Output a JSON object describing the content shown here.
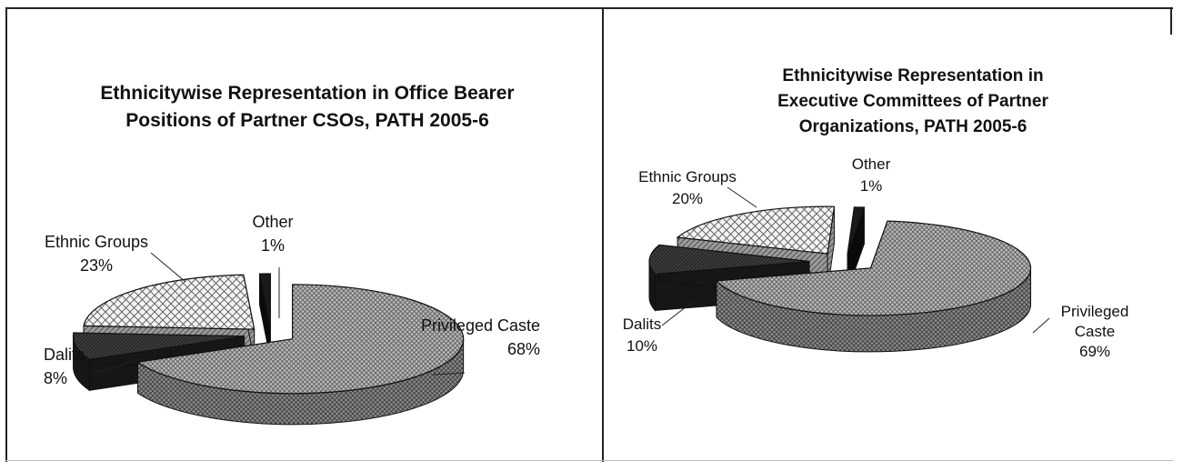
{
  "chart_data": [
    {
      "type": "pie",
      "title_lines": [
        "Ethnicitywise Representation in Office Bearer",
        "Positions of Partner CSOs, PATH 2005-6"
      ],
      "categories": [
        "Privileged Caste",
        "Dalits",
        "Ethnic Groups",
        "Other"
      ],
      "values": [
        68,
        8,
        23,
        1
      ],
      "value_labels": [
        "68%",
        "8%",
        "23%",
        "1%"
      ],
      "legend": "none",
      "exploded": true,
      "three_d": true
    },
    {
      "type": "pie",
      "title_lines": [
        "Ethnicitywise Representation in",
        "Executive Committees of Partner",
        "Organizations, PATH 2005-6"
      ],
      "categories": [
        "Privileged Caste",
        "Dalits",
        "Ethnic Groups",
        "Other"
      ],
      "category_label_lines": [
        [
          "Privileged",
          "Caste"
        ],
        [
          "Dalits"
        ],
        [
          "Ethnic Groups"
        ],
        [
          "Other"
        ]
      ],
      "values": [
        69,
        10,
        20,
        1
      ],
      "value_labels": [
        "69%",
        "10%",
        "20%",
        "1%"
      ],
      "legend": "none",
      "exploded": true,
      "three_d": true
    }
  ]
}
